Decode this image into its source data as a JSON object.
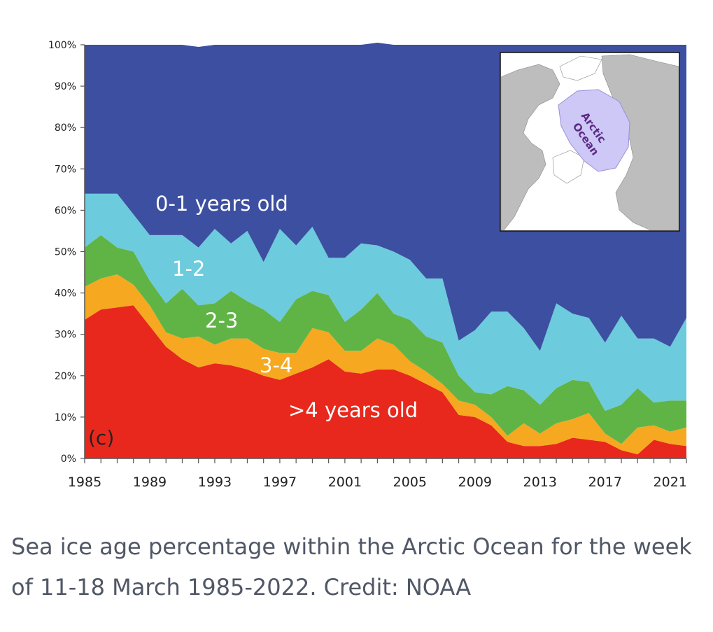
{
  "caption": "Sea ice age percentage within the Arctic Ocean for the week of 11-18 March 1985-2022. Credit: NOAA",
  "colors": {
    "age_0_1": "#3c4fa0",
    "age_1_2": "#6ccbdc",
    "age_2_3": "#5fb445",
    "age_3_4": "#f6a820",
    "age_4_plus": "#e8281c",
    "inset_ocean": "#cdc8f5",
    "inset_land": "#bdbdbd"
  },
  "chart_data": {
    "type": "area",
    "stacked": true,
    "ylim": [
      0,
      100
    ],
    "yticks": [
      "0%",
      "10%",
      "20%",
      "30%",
      "40%",
      "50%",
      "60%",
      "70%",
      "80%",
      "90%",
      "100%"
    ],
    "xticks": [
      "1985",
      "1989",
      "1993",
      "1997",
      "2001",
      "2005",
      "2009",
      "2013",
      "2017",
      "2021"
    ],
    "panel_label": "(c)",
    "x": [
      1985,
      1986,
      1987,
      1988,
      1989,
      1990,
      1991,
      1992,
      1993,
      1994,
      1995,
      1996,
      1997,
      1998,
      1999,
      2000,
      2001,
      2002,
      2003,
      2004,
      2005,
      2006,
      2007,
      2008,
      2009,
      2010,
      2011,
      2012,
      2013,
      2014,
      2015,
      2016,
      2017,
      2018,
      2019,
      2020,
      2021,
      2022
    ],
    "series": [
      {
        "name": ">4 years old",
        "color_key": "age_4_plus",
        "values": [
          33.5,
          36,
          36.5,
          37,
          32,
          27,
          24,
          22,
          23,
          22.5,
          21.5,
          20,
          19,
          20.5,
          22,
          24,
          21,
          20.5,
          21.5,
          21.5,
          20,
          18,
          16,
          10.5,
          10,
          8,
          4,
          3,
          3,
          3.5,
          5,
          4.5,
          4,
          2,
          1,
          4.5,
          3.5,
          3
        ]
      },
      {
        "name": "3-4",
        "color_key": "age_3_4",
        "values": [
          8,
          7.5,
          8,
          5,
          5,
          3.5,
          5,
          7.5,
          4.5,
          6.5,
          7.5,
          6.5,
          6.5,
          5,
          9.5,
          6.5,
          5,
          5.5,
          7.5,
          6,
          3.5,
          3,
          2,
          3.5,
          3,
          2,
          1.5,
          5.5,
          3,
          5,
          4.5,
          6.5,
          2,
          1.5,
          6.5,
          3.5,
          3,
          4.5
        ]
      },
      {
        "name": "2-3",
        "color_key": "age_2_3",
        "values": [
          9.5,
          10.5,
          6.5,
          8,
          6,
          7,
          12,
          7.5,
          10,
          11.5,
          9,
          9.5,
          7.5,
          13,
          9,
          9,
          7,
          10,
          11,
          7.5,
          10,
          8.5,
          10,
          6,
          3,
          5.5,
          12,
          8,
          7,
          8.5,
          9.5,
          7.5,
          5.5,
          9.5,
          9.5,
          5.5,
          7.5,
          6.5
        ]
      },
      {
        "name": "1-2",
        "color_key": "age_1_2",
        "values": [
          13,
          10,
          13,
          9,
          11,
          16.5,
          13,
          14,
          18,
          11.5,
          17,
          11.5,
          22.5,
          13,
          15.5,
          9,
          15.5,
          16,
          11.5,
          15,
          14.5,
          14,
          15.5,
          8.5,
          15,
          20,
          18,
          15,
          13,
          20.5,
          16,
          15.5,
          16.5,
          21.5,
          12,
          15.5,
          13,
          20
        ]
      },
      {
        "name": "0-1 years old",
        "color_key": "age_0_1",
        "values": [
          36,
          36,
          36,
          41,
          46,
          46,
          46,
          48.5,
          44.5,
          48,
          45,
          52.5,
          44.5,
          48.5,
          44,
          51.5,
          51.5,
          48,
          49,
          50,
          52,
          56.5,
          56.5,
          71.5,
          69,
          64.5,
          64.5,
          68.5,
          74,
          62.5,
          65,
          66,
          72,
          65.5,
          71,
          71,
          73,
          66
        ]
      }
    ],
    "area_labels": {
      "age_0_1": "0-1 years old",
      "age_1_2": "1-2",
      "age_2_3": "2-3",
      "age_3_4": "3-4",
      "age_4_plus": ">4 years old"
    },
    "inset_label": [
      "Arctic",
      "Ocean"
    ]
  }
}
